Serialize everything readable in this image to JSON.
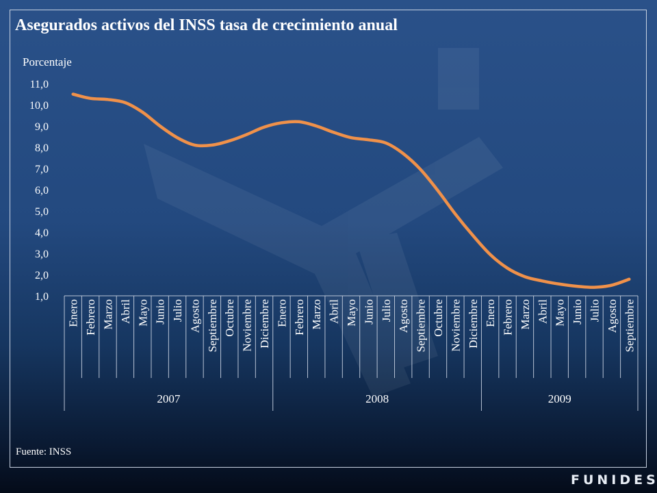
{
  "chart_data": {
    "type": "line",
    "title": "Asegurados activos del INSS tasa de crecimiento anual",
    "ylabel": "Porcentaje",
    "xlabel": "",
    "ylim": [
      1.0,
      11.0
    ],
    "yticks": [
      "1,0",
      "2,0",
      "3,0",
      "4,0",
      "5,0",
      "6,0",
      "7,0",
      "8,0",
      "9,0",
      "10,0",
      "11,0"
    ],
    "grid": false,
    "legend": "none",
    "line_color": "#f0914a",
    "categories": [
      "Enero",
      "Febrero",
      "Marzo",
      "Abril",
      "Mayo",
      "Junio",
      "Julio",
      "Agosto",
      "Septiembre",
      "Octubre",
      "Noviembre",
      "Diciembre",
      "Enero",
      "Febrero",
      "Marzo",
      "Abril",
      "Mayo",
      "Junio",
      "Julio",
      "Agosto",
      "Septiembre",
      "Octubre",
      "Noviembre",
      "Diciembre",
      "Enero",
      "Febrero",
      "Marzo",
      "Abril",
      "Mayo",
      "Junio",
      "Julio",
      "Agosto",
      "Septiembre"
    ],
    "groups": [
      {
        "label": "2007",
        "count": 12
      },
      {
        "label": "2008",
        "count": 12
      },
      {
        "label": "2009",
        "count": 9
      }
    ],
    "values": [
      10.5,
      10.3,
      10.25,
      10.1,
      9.65,
      9.0,
      8.45,
      8.1,
      8.1,
      8.3,
      8.6,
      8.95,
      9.15,
      9.2,
      9.0,
      8.7,
      8.45,
      8.35,
      8.2,
      7.7,
      6.95,
      5.95,
      4.85,
      3.85,
      2.95,
      2.3,
      1.9,
      1.7,
      1.55,
      1.45,
      1.4,
      1.5,
      1.78
    ]
  },
  "source": "Fuente: INSS",
  "brand": "FUNIDES"
}
